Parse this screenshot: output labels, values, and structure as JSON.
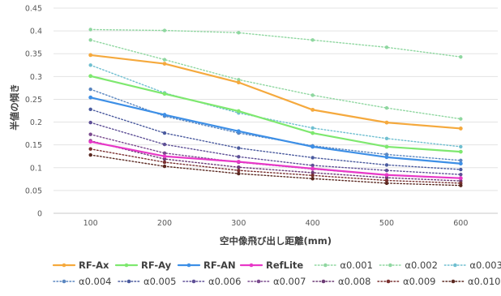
{
  "chart_data": {
    "type": "line",
    "xlabel": "空中像飛び出し距離(mm)",
    "ylabel": "半値の傾き",
    "x": [
      100,
      200,
      300,
      400,
      500,
      600
    ],
    "ylim": [
      0,
      0.45
    ],
    "yticks": [
      "0",
      "0.05",
      "0.1",
      "0.15",
      "0.2",
      "0.25",
      "0.3",
      "0.35",
      "0.4",
      "0.45"
    ],
    "grid": "horizontal",
    "legend_position": "bottom",
    "series": [
      {
        "name": "RF-Ax",
        "color": "#f5a93d",
        "style": "solid",
        "values": [
          0.347,
          0.328,
          0.287,
          0.227,
          0.199,
          0.186
        ]
      },
      {
        "name": "RF-Ay",
        "color": "#7ee86f",
        "style": "solid",
        "values": [
          0.301,
          0.262,
          0.224,
          0.176,
          0.146,
          0.135
        ]
      },
      {
        "name": "RF-AN",
        "color": "#3d8fe6",
        "style": "solid",
        "values": [
          0.254,
          0.216,
          0.18,
          0.146,
          0.123,
          0.109
        ]
      },
      {
        "name": "RefLite",
        "color": "#e838c8",
        "style": "solid",
        "values": [
          0.157,
          0.125,
          0.113,
          0.098,
          0.084,
          0.077
        ]
      },
      {
        "name": "α0.001",
        "color": "#8fd7a0",
        "style": "dotted",
        "values": [
          0.403,
          0.401,
          0.396,
          0.38,
          0.364,
          0.343
        ]
      },
      {
        "name": "α0.002",
        "color": "#8fd7a0",
        "style": "dotted",
        "values": [
          0.38,
          0.337,
          0.293,
          0.259,
          0.231,
          0.207
        ]
      },
      {
        "name": "α0.003",
        "color": "#6fbfd0",
        "style": "dotted",
        "values": [
          0.325,
          0.264,
          0.22,
          0.187,
          0.164,
          0.146
        ]
      },
      {
        "name": "α0.004",
        "color": "#5a86c0",
        "style": "dotted",
        "values": [
          0.272,
          0.213,
          0.176,
          0.148,
          0.129,
          0.116
        ]
      },
      {
        "name": "α0.005",
        "color": "#4a5a9e",
        "style": "dotted",
        "values": [
          0.228,
          0.176,
          0.143,
          0.122,
          0.106,
          0.096
        ]
      },
      {
        "name": "α0.006",
        "color": "#5e4f96",
        "style": "dotted",
        "values": [
          0.199,
          0.151,
          0.124,
          0.105,
          0.094,
          0.085
        ]
      },
      {
        "name": "α0.007",
        "color": "#7a4a8e",
        "style": "dotted",
        "values": [
          0.173,
          0.132,
          0.112,
          0.097,
          0.084,
          0.077
        ]
      },
      {
        "name": "α0.008",
        "color": "#6b3a74",
        "style": "dotted",
        "values": [
          0.159,
          0.119,
          0.101,
          0.089,
          0.078,
          0.071
        ]
      },
      {
        "name": "α0.009",
        "color": "#7a3030",
        "style": "dotted",
        "values": [
          0.141,
          0.112,
          0.094,
          0.083,
          0.072,
          0.066
        ]
      },
      {
        "name": "α0.010",
        "color": "#5a2820",
        "style": "dotted",
        "values": [
          0.128,
          0.103,
          0.087,
          0.076,
          0.066,
          0.061
        ]
      }
    ]
  }
}
